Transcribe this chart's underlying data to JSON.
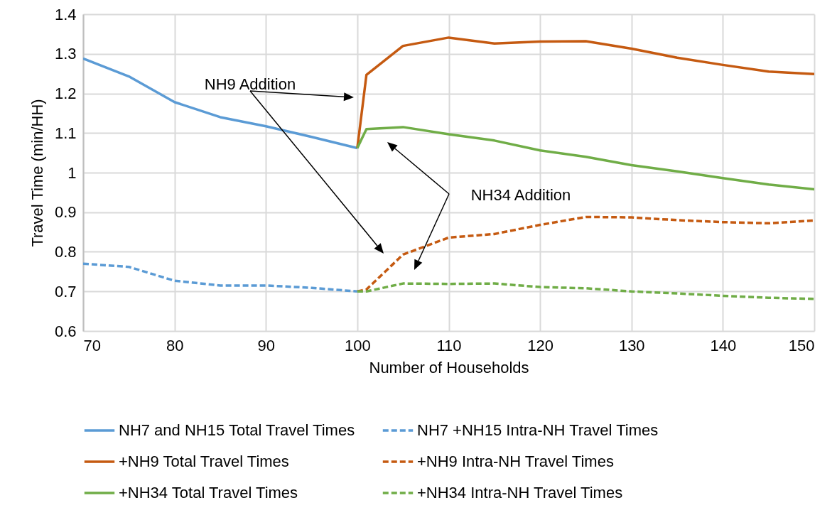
{
  "chart_data": {
    "type": "line",
    "xlabel": "Number of Households",
    "ylabel": "Travel Time (min/HH)",
    "xlim": [
      70,
      150
    ],
    "xticks": [
      70,
      80,
      90,
      100,
      110,
      120,
      130,
      140,
      150
    ],
    "ylim": [
      0.6,
      1.4
    ],
    "yticks": [
      0.6,
      0.7,
      0.8,
      0.9,
      1,
      1.1,
      1.2,
      1.3,
      1.4
    ],
    "grid": true,
    "legend": "bottom",
    "marker": "none",
    "annotations": [
      "NH9 Addition",
      "NH34 Addition"
    ],
    "series": [
      {
        "name": "NH7 and NH15 Total Travel Times",
        "color": "#5b9bd5",
        "line_style": "solid",
        "x": [
          70,
          75,
          80,
          85,
          90,
          95,
          100
        ],
        "values": [
          1.288,
          1.243,
          1.178,
          1.14,
          1.117,
          1.09,
          1.062
        ]
      },
      {
        "name": "NH7 +NH15 Intra-NH Travel Times",
        "color": "#5b9bd5",
        "line_style": "dashed",
        "x": [
          70,
          75,
          80,
          85,
          90,
          95,
          100
        ],
        "values": [
          0.77,
          0.762,
          0.727,
          0.715,
          0.715,
          0.709,
          0.7
        ]
      },
      {
        "name": "+NH9 Total Travel Times",
        "color": "#c55a11",
        "line_style": "solid",
        "x": [
          100,
          101,
          105,
          110,
          115,
          120,
          125,
          130,
          135,
          140,
          145,
          150
        ],
        "values": [
          1.062,
          1.247,
          1.32,
          1.341,
          1.326,
          1.331,
          1.332,
          1.313,
          1.29,
          1.272,
          1.255,
          1.249
        ]
      },
      {
        "name": "+NH9 Intra-NH Travel Times",
        "color": "#c55a11",
        "line_style": "dashed",
        "x": [
          100,
          101,
          105,
          110,
          115,
          120,
          125,
          130,
          135,
          140,
          145,
          150
        ],
        "values": [
          0.7,
          0.705,
          0.793,
          0.836,
          0.845,
          0.868,
          0.888,
          0.887,
          0.88,
          0.875,
          0.872,
          0.879
        ]
      },
      {
        "name": "+NH34 Total Travel Times",
        "color": "#70ad47",
        "line_style": "solid",
        "x": [
          100,
          101,
          105,
          110,
          115,
          120,
          125,
          130,
          135,
          140,
          145,
          150
        ],
        "values": [
          1.062,
          1.11,
          1.115,
          1.097,
          1.081,
          1.056,
          1.04,
          1.019,
          1.003,
          0.986,
          0.97,
          0.958
        ]
      },
      {
        "name": "+NH34 Intra-NH Travel Times",
        "color": "#70ad47",
        "line_style": "dashed",
        "x": [
          100,
          101,
          105,
          110,
          115,
          120,
          125,
          130,
          135,
          140,
          145,
          150
        ],
        "values": [
          0.7,
          0.7,
          0.72,
          0.719,
          0.72,
          0.711,
          0.708,
          0.7,
          0.695,
          0.689,
          0.684,
          0.681
        ]
      }
    ]
  }
}
